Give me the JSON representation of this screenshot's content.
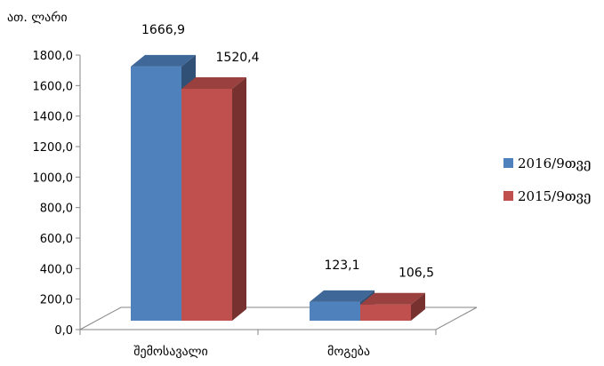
{
  "chart_data": {
    "type": "bar",
    "style": "3d-clustered-column",
    "unit_label": "ათ. ლარი",
    "categories": [
      "შემოსავალი",
      "მოგება"
    ],
    "series": [
      {
        "name": "2016/9თვე",
        "color": "#4F81BD",
        "values": [
          1666.9,
          123.1
        ],
        "labels": [
          "1666,9",
          "123,1"
        ]
      },
      {
        "name": "2015/9თვე",
        "color": "#C0504D",
        "values": [
          1520.4,
          106.5
        ],
        "labels": [
          "1520,4",
          "106,5"
        ]
      }
    ],
    "ylim": [
      0,
      1800
    ],
    "yticks": [
      "0,0",
      "200,0",
      "400,0",
      "600,0",
      "800,0",
      "1000,0",
      "1200,0",
      "1400,0",
      "1600,0",
      "1800,0"
    ],
    "legend": "right",
    "grid": false
  }
}
